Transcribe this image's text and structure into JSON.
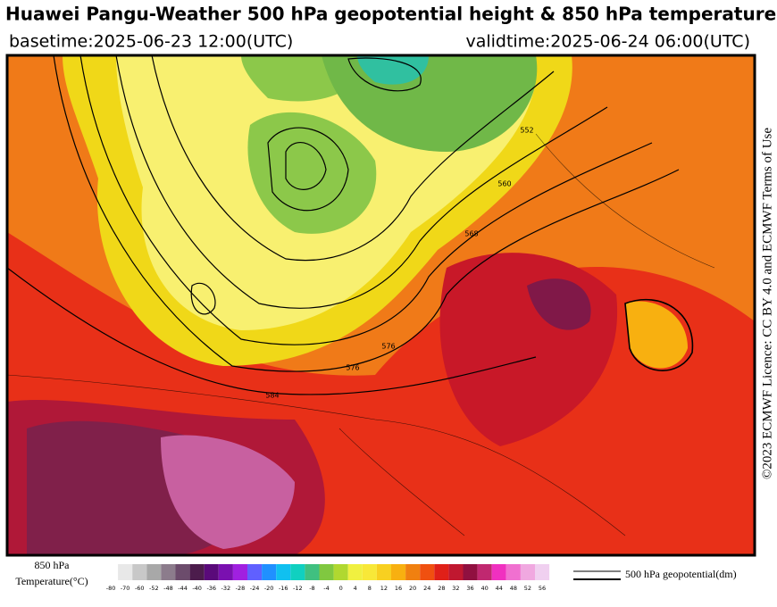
{
  "header": {
    "title": "Huawei Pangu-Weather 500 hPa geopotential height & 850 hPa temperature",
    "basetime": "basetime:2025-06-23 12:00(UTC)",
    "validtime": "validtime:2025-06-24 06:00(UTC)"
  },
  "credit": "©2023 ECMWF Licence: CC BY 4.0 and ECMWF Terms of Use",
  "map": {
    "contour_labels": [
      "576",
      "584",
      "576",
      "552",
      "560",
      "568"
    ]
  },
  "colorbar": {
    "title": [
      "850 hPa",
      "Temperature(°C)"
    ],
    "ticks": [
      -80,
      -70,
      -60,
      -52,
      -48,
      -44,
      -40,
      -36,
      -32,
      -28,
      -24,
      -20,
      -16,
      -12,
      -8,
      -4,
      0,
      4,
      8,
      12,
      16,
      20,
      24,
      28,
      32,
      36,
      40,
      44,
      48,
      52,
      56
    ],
    "colors": [
      "#ffffff",
      "#e8e8e8",
      "#c8c8c8",
      "#a8a8a8",
      "#8c7c8c",
      "#6c4c6c",
      "#4c1c4c",
      "#5a0a7a",
      "#7a10b0",
      "#a020e0",
      "#6060ff",
      "#2090ff",
      "#10c0f0",
      "#10d0c0",
      "#40c080",
      "#80c840",
      "#b0d830",
      "#f0f040",
      "#f8e838",
      "#f8d020",
      "#f8b010",
      "#f08010",
      "#f05010",
      "#e02018",
      "#c01830",
      "#901040",
      "#c02870",
      "#f030c0",
      "#f070d0",
      "#f0a8e0",
      "#f0d0f0"
    ]
  },
  "legend": {
    "label": "500 hPa geopotential(dm)"
  }
}
